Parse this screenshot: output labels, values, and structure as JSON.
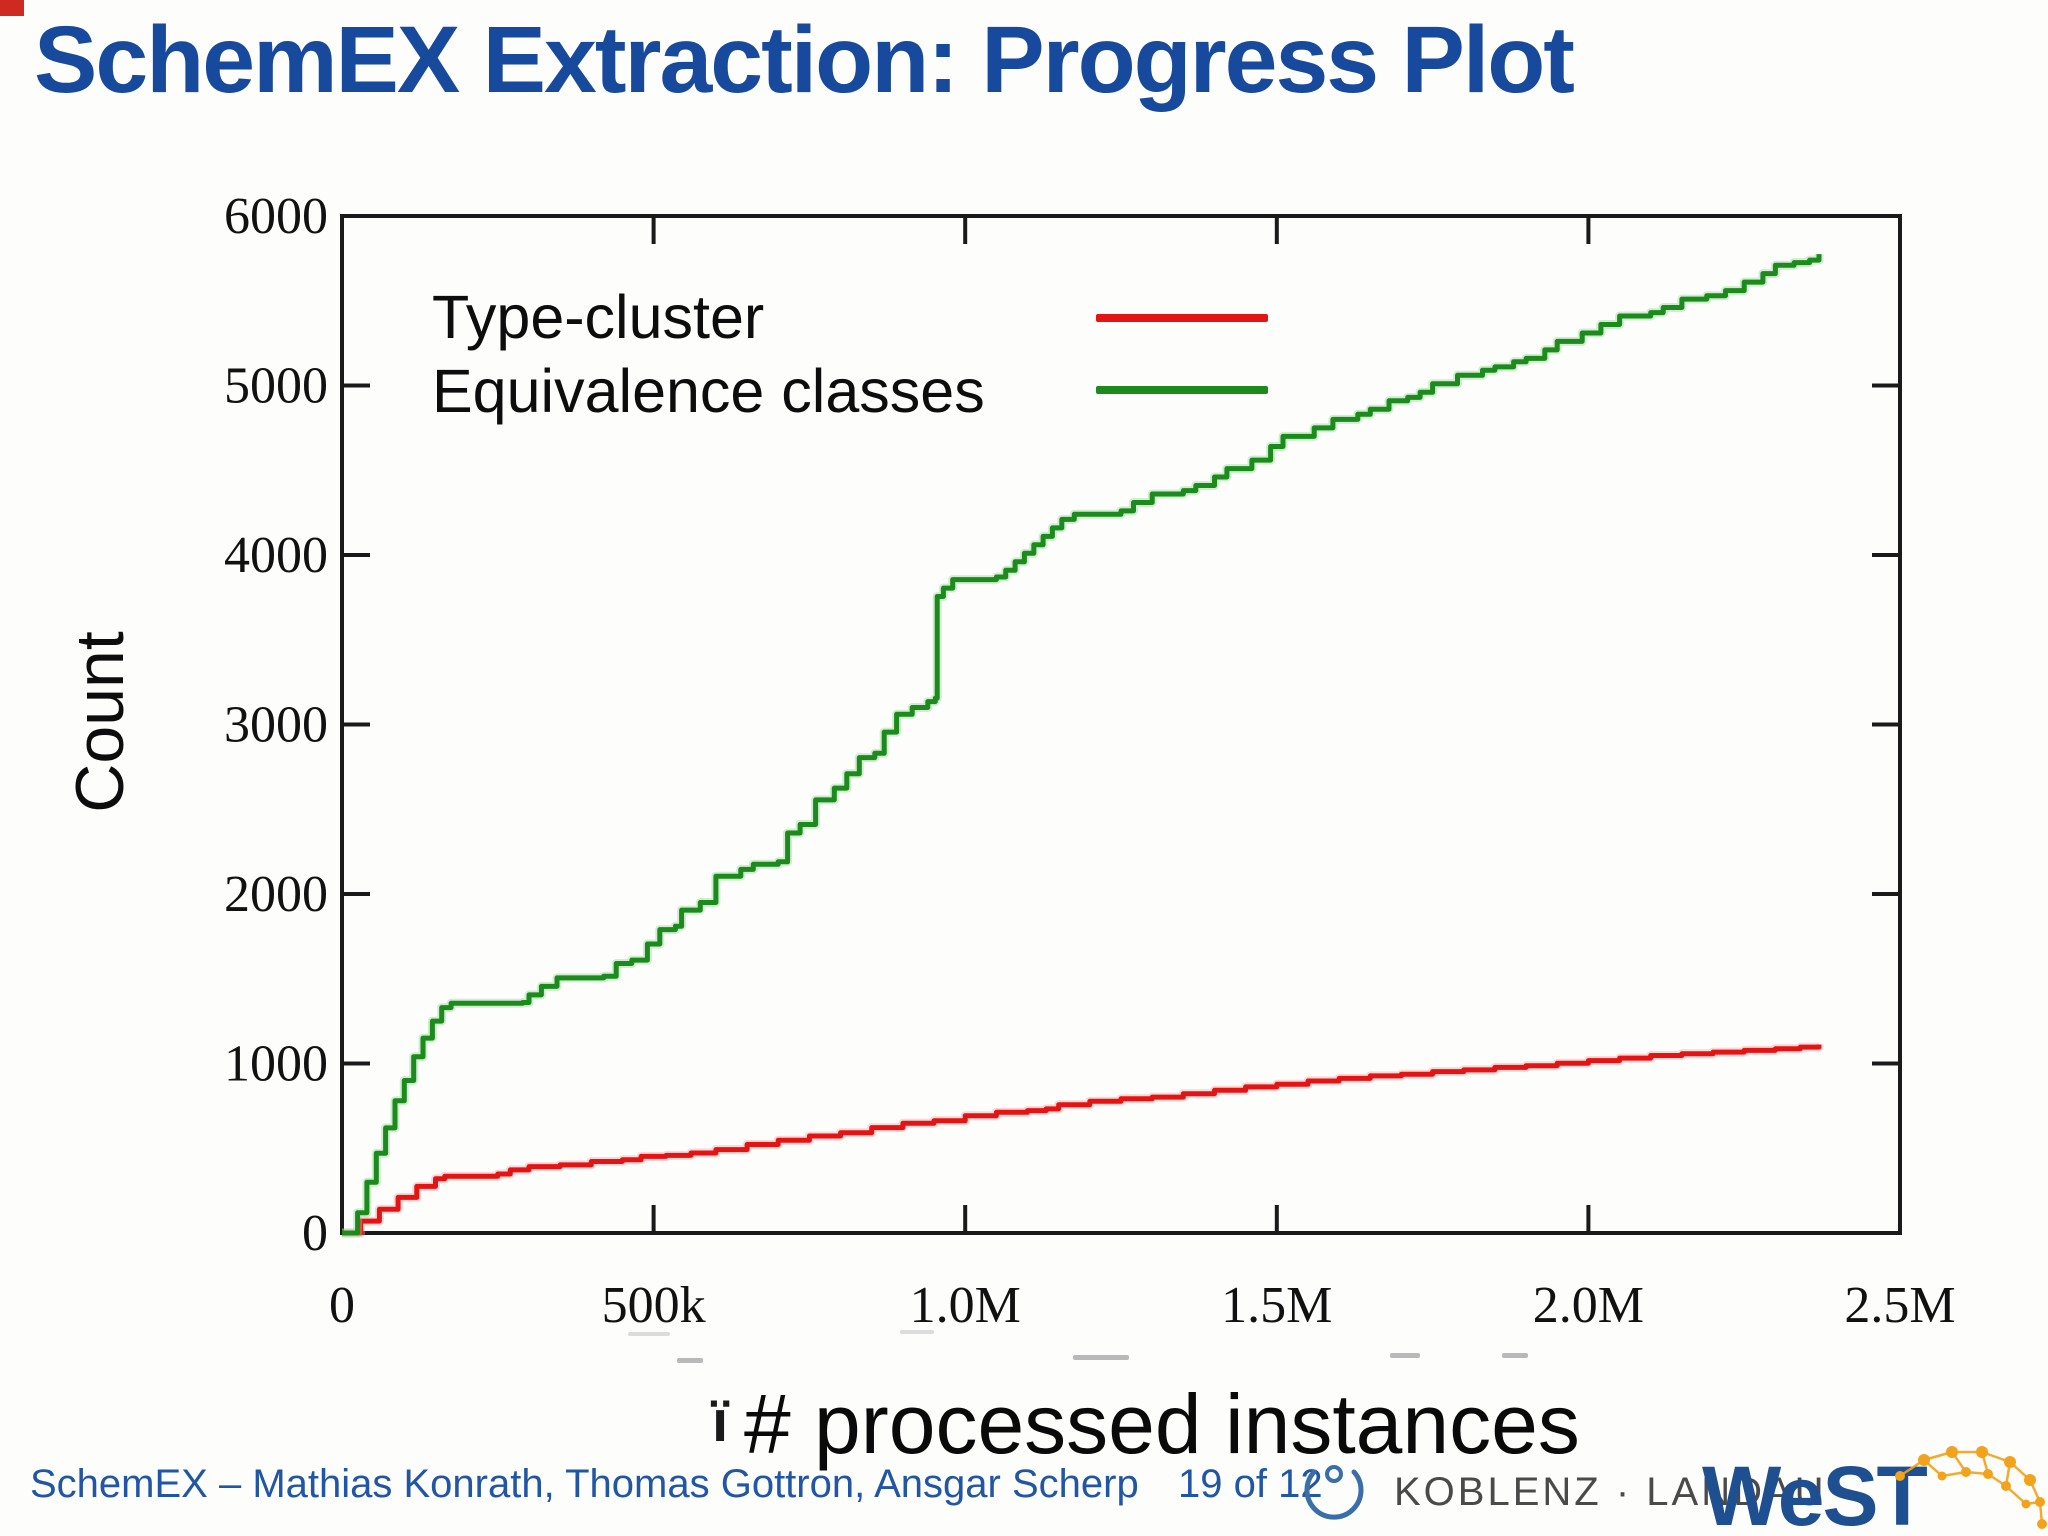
{
  "title": "SchemEX Extraction: Progress Plot",
  "chart_data": {
    "type": "line",
    "title": "",
    "xlabel": "# processed instances",
    "ylabel": "Count",
    "xlim": [
      0,
      2500000
    ],
    "ylim": [
      0,
      6000
    ],
    "grid": false,
    "legend_position": "top-left-inside",
    "x_ticks": [
      {
        "value": 0,
        "label": "0"
      },
      {
        "value": 500000,
        "label": "500k"
      },
      {
        "value": 1000000,
        "label": "1.0M"
      },
      {
        "value": 1500000,
        "label": "1.5M"
      },
      {
        "value": 2000000,
        "label": "2.0M"
      },
      {
        "value": 2500000,
        "label": "2.5M"
      }
    ],
    "y_ticks": [
      {
        "value": 0,
        "label": "0"
      },
      {
        "value": 1000,
        "label": "1000"
      },
      {
        "value": 2000,
        "label": "2000"
      },
      {
        "value": 3000,
        "label": "3000"
      },
      {
        "value": 4000,
        "label": "4000"
      },
      {
        "value": 5000,
        "label": "5000"
      },
      {
        "value": 6000,
        "label": "6000"
      }
    ],
    "series": [
      {
        "name": "Type-cluster",
        "color": "#e31414",
        "halo": "#f5a0a0",
        "points": [
          [
            0,
            0
          ],
          [
            30000,
            70
          ],
          [
            60000,
            140
          ],
          [
            90000,
            210
          ],
          [
            120000,
            275
          ],
          [
            150000,
            320
          ],
          [
            165000,
            335
          ],
          [
            250000,
            348
          ],
          [
            270000,
            372
          ],
          [
            300000,
            392
          ],
          [
            350000,
            402
          ],
          [
            400000,
            422
          ],
          [
            450000,
            432
          ],
          [
            480000,
            452
          ],
          [
            520000,
            458
          ],
          [
            560000,
            472
          ],
          [
            600000,
            492
          ],
          [
            650000,
            522
          ],
          [
            700000,
            547
          ],
          [
            750000,
            572
          ],
          [
            800000,
            592
          ],
          [
            850000,
            622
          ],
          [
            900000,
            647
          ],
          [
            950000,
            662
          ],
          [
            1000000,
            692
          ],
          [
            1050000,
            712
          ],
          [
            1100000,
            722
          ],
          [
            1130000,
            732
          ],
          [
            1150000,
            757
          ],
          [
            1200000,
            777
          ],
          [
            1250000,
            792
          ],
          [
            1300000,
            802
          ],
          [
            1350000,
            822
          ],
          [
            1400000,
            842
          ],
          [
            1450000,
            862
          ],
          [
            1500000,
            877
          ],
          [
            1550000,
            897
          ],
          [
            1600000,
            912
          ],
          [
            1650000,
            927
          ],
          [
            1700000,
            937
          ],
          [
            1750000,
            952
          ],
          [
            1800000,
            962
          ],
          [
            1850000,
            977
          ],
          [
            1900000,
            987
          ],
          [
            1950000,
            1002
          ],
          [
            2000000,
            1017
          ],
          [
            2050000,
            1032
          ],
          [
            2100000,
            1047
          ],
          [
            2150000,
            1057
          ],
          [
            2200000,
            1067
          ],
          [
            2250000,
            1077
          ],
          [
            2300000,
            1087
          ],
          [
            2340000,
            1097
          ],
          [
            2370000,
            1112
          ]
        ]
      },
      {
        "name": "Equivalence classes",
        "color": "#1d8a1d",
        "halo": "#8fd48f",
        "points": [
          [
            0,
            0
          ],
          [
            25000,
            120
          ],
          [
            40000,
            300
          ],
          [
            55000,
            470
          ],
          [
            70000,
            620
          ],
          [
            85000,
            780
          ],
          [
            100000,
            900
          ],
          [
            115000,
            1040
          ],
          [
            130000,
            1150
          ],
          [
            145000,
            1250
          ],
          [
            160000,
            1330
          ],
          [
            175000,
            1355
          ],
          [
            290000,
            1360
          ],
          [
            300000,
            1405
          ],
          [
            320000,
            1455
          ],
          [
            345000,
            1505
          ],
          [
            420000,
            1515
          ],
          [
            440000,
            1590
          ],
          [
            465000,
            1610
          ],
          [
            490000,
            1705
          ],
          [
            510000,
            1790
          ],
          [
            535000,
            1810
          ],
          [
            545000,
            1905
          ],
          [
            575000,
            1950
          ],
          [
            600000,
            2105
          ],
          [
            640000,
            2145
          ],
          [
            660000,
            2175
          ],
          [
            700000,
            2190
          ],
          [
            715000,
            2360
          ],
          [
            735000,
            2410
          ],
          [
            760000,
            2555
          ],
          [
            790000,
            2625
          ],
          [
            810000,
            2710
          ],
          [
            830000,
            2805
          ],
          [
            855000,
            2830
          ],
          [
            870000,
            2955
          ],
          [
            890000,
            3060
          ],
          [
            915000,
            3100
          ],
          [
            940000,
            3135
          ],
          [
            952000,
            3155
          ],
          [
            955000,
            3755
          ],
          [
            965000,
            3805
          ],
          [
            980000,
            3855
          ],
          [
            1050000,
            3870
          ],
          [
            1065000,
            3910
          ],
          [
            1080000,
            3960
          ],
          [
            1095000,
            4010
          ],
          [
            1110000,
            4060
          ],
          [
            1125000,
            4110
          ],
          [
            1140000,
            4160
          ],
          [
            1155000,
            4210
          ],
          [
            1175000,
            4240
          ],
          [
            1250000,
            4260
          ],
          [
            1270000,
            4310
          ],
          [
            1300000,
            4360
          ],
          [
            1350000,
            4380
          ],
          [
            1370000,
            4410
          ],
          [
            1400000,
            4460
          ],
          [
            1420000,
            4510
          ],
          [
            1460000,
            4560
          ],
          [
            1490000,
            4640
          ],
          [
            1510000,
            4700
          ],
          [
            1560000,
            4750
          ],
          [
            1590000,
            4800
          ],
          [
            1630000,
            4830
          ],
          [
            1650000,
            4860
          ],
          [
            1680000,
            4910
          ],
          [
            1710000,
            4930
          ],
          [
            1730000,
            4960
          ],
          [
            1750000,
            5010
          ],
          [
            1790000,
            5060
          ],
          [
            1830000,
            5090
          ],
          [
            1850000,
            5110
          ],
          [
            1880000,
            5140
          ],
          [
            1900000,
            5160
          ],
          [
            1930000,
            5210
          ],
          [
            1950000,
            5260
          ],
          [
            1990000,
            5310
          ],
          [
            2020000,
            5360
          ],
          [
            2050000,
            5410
          ],
          [
            2100000,
            5430
          ],
          [
            2120000,
            5460
          ],
          [
            2150000,
            5510
          ],
          [
            2190000,
            5530
          ],
          [
            2220000,
            5560
          ],
          [
            2250000,
            5610
          ],
          [
            2280000,
            5660
          ],
          [
            2300000,
            5710
          ],
          [
            2330000,
            5725
          ],
          [
            2355000,
            5740
          ],
          [
            2370000,
            5775
          ]
        ]
      }
    ]
  },
  "artifacts": {
    "stray_glyph": "ï"
  },
  "footer": {
    "credit": "SchemEX – Mathias Konrath, Thomas Gottron, Ansgar Scherp",
    "page_label": "19 of 12",
    "university": "KOBLENZ · LANDAU",
    "lab": "WeST"
  },
  "colors": {
    "title_blue": "#17499c",
    "footer_blue": "#2156a5",
    "axis_black": "#1a1a1a",
    "type_cluster_red": "#e31414",
    "equivalence_green": "#1d8a1d",
    "west_blue": "#1d4f91",
    "west_orange": "#f2a21b",
    "koblenz_gray": "#4a4a4a",
    "logo_circle_blue": "#3a6ea8"
  }
}
